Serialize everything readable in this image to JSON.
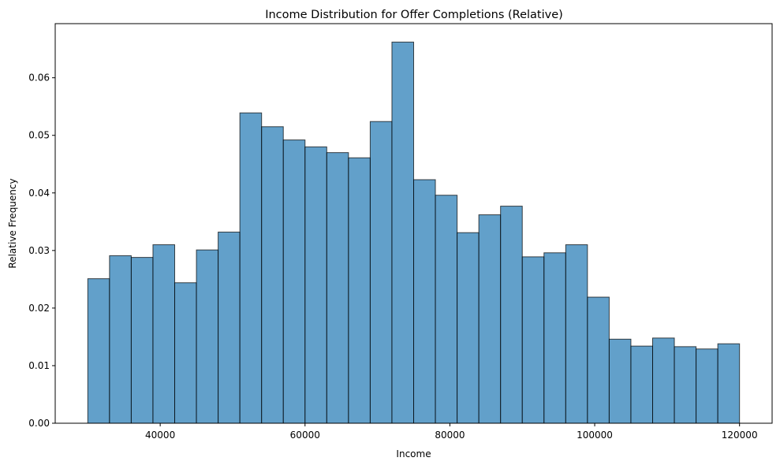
{
  "chart_data": {
    "type": "bar",
    "title": "Income Distribution for Offer Completions (Relative)",
    "xlabel": "Income",
    "ylabel": "Relative Frequency",
    "xlim": [
      25500,
      124500
    ],
    "ylim": [
      0,
      0.0694
    ],
    "xticks": [
      40000,
      60000,
      80000,
      100000,
      120000
    ],
    "yticks": [
      0.0,
      0.01,
      0.02,
      0.03,
      0.04,
      0.05,
      0.06
    ],
    "ytick_labels": [
      "0.00",
      "0.01",
      "0.02",
      "0.03",
      "0.04",
      "0.05",
      "0.06"
    ],
    "bin_start": 30000,
    "bin_end": 120000,
    "values": [
      0.0251,
      0.0291,
      0.0288,
      0.031,
      0.0244,
      0.0301,
      0.0332,
      0.0539,
      0.0515,
      0.0492,
      0.048,
      0.047,
      0.0461,
      0.0524,
      0.0662,
      0.0423,
      0.0396,
      0.0331,
      0.0362,
      0.0377,
      0.0289,
      0.0296,
      0.031,
      0.0219,
      0.0146,
      0.0134,
      0.0148,
      0.0133,
      0.0129,
      0.0138
    ],
    "grid": false,
    "bar_color": "#1f77b4",
    "edge_color": "#000000"
  }
}
